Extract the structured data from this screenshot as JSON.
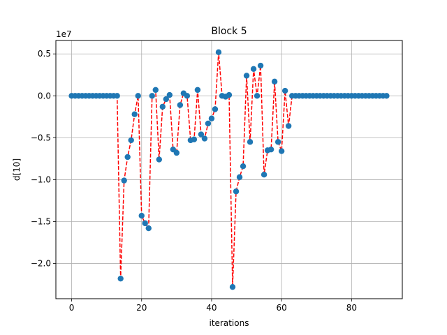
{
  "chart_data": {
    "type": "scatter",
    "title": "Block 5",
    "xlabel": "iterations",
    "ylabel": "d[10]",
    "offset_label": "1e7",
    "xlim": [
      -4.5,
      94.5
    ],
    "ylim": [
      -24200000.0,
      6600000.0
    ],
    "x_ticks": [
      0,
      20,
      40,
      60,
      80
    ],
    "x_tick_labels": [
      "0",
      "20",
      "40",
      "60",
      "80"
    ],
    "y_ticks": [
      5000000.0,
      0,
      -5000000.0,
      -10000000.0,
      -15000000.0,
      -20000000.0
    ],
    "y_tick_labels": [
      "0.5",
      "0.0",
      "−0.5",
      "−1.0",
      "−1.5",
      "−2.0"
    ],
    "grid": true,
    "marker_color": "#1f77b4",
    "line_color": "#ff0000",
    "line_style": "dashed",
    "x": [
      0,
      1,
      2,
      3,
      4,
      5,
      6,
      7,
      8,
      9,
      10,
      11,
      12,
      13,
      14,
      15,
      16,
      17,
      18,
      19,
      20,
      21,
      22,
      23,
      24,
      25,
      26,
      27,
      28,
      29,
      30,
      31,
      32,
      33,
      34,
      35,
      36,
      37,
      38,
      39,
      40,
      41,
      42,
      43,
      44,
      45,
      46,
      47,
      48,
      49,
      50,
      51,
      52,
      53,
      54,
      55,
      56,
      57,
      58,
      59,
      60,
      61,
      62,
      63,
      64,
      65,
      66,
      67,
      68,
      69,
      70,
      71,
      72,
      73,
      74,
      75,
      76,
      77,
      78,
      79,
      80,
      81,
      82,
      83,
      84,
      85,
      86,
      87,
      88,
      89,
      90
    ],
    "y": [
      0,
      0,
      0,
      0,
      0,
      0,
      0,
      0,
      0,
      0,
      0,
      0,
      0,
      0,
      -21800000,
      -10100000,
      -7300000,
      -5300000,
      -2200000,
      0,
      -14300000,
      -15200000,
      -15800000,
      0,
      700000,
      -7600000,
      -1300000,
      -400000,
      100000,
      -6400000,
      -6800000,
      -1100000,
      300000,
      0,
      -5300000,
      -5200000,
      700000,
      -4600000,
      -5100000,
      -3300000,
      -2700000,
      -1600000,
      5200000,
      0,
      -100000,
      100000,
      -22800000,
      -11400000,
      -9700000,
      -8400000,
      2400000,
      -5500000,
      3200000,
      0,
      3600000,
      -9400000,
      -6500000,
      -6400000,
      1700000,
      -5500000,
      -6600000,
      600000,
      -3600000,
      0,
      0,
      0,
      0,
      0,
      0,
      0,
      0,
      0,
      0,
      0,
      0,
      0,
      0,
      0,
      0,
      0,
      0,
      0,
      0,
      0,
      0,
      0,
      0,
      0,
      0,
      0,
      0
    ]
  }
}
